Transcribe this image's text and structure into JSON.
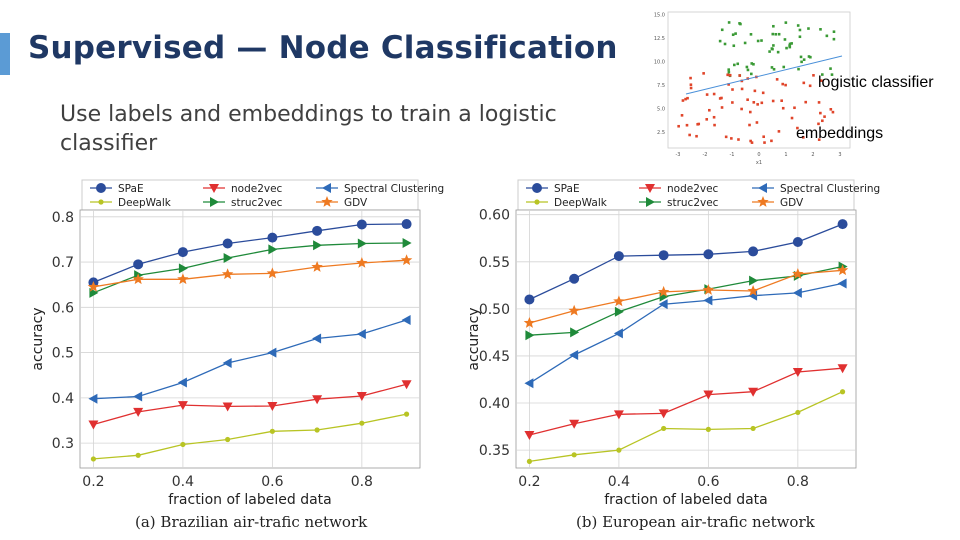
{
  "slide": {
    "title": "Supervised — Node Classification",
    "body": "Use labels and embeddings to train a logistic classifier",
    "accent_color": "#5b9bd5",
    "title_color": "#1f3864"
  },
  "annotations": {
    "logistic": "logistic classifier",
    "embeddings": "embeddings"
  },
  "scatter_inset": {
    "type": "scatter",
    "series_colors": {
      "upper": "#3a9a35",
      "lower": "#e0452a",
      "line": "#4a90d9"
    },
    "x_ticks": [
      "-3",
      "-2",
      "-1",
      "0",
      "1",
      "2",
      "3"
    ],
    "y_ticks": [
      "2.5",
      "5.0",
      "7.5",
      "10.0",
      "12.5",
      "15.0"
    ],
    "xlabel": "x1"
  },
  "chart_data": [
    {
      "type": "line",
      "caption": "(a) Brazilian air-trafic network",
      "xlabel": "fraction of labeled data",
      "ylabel": "accuracy",
      "xlim": [
        0.17,
        0.93
      ],
      "ylim": [
        0.245,
        0.815
      ],
      "x_ticks": [
        "0.2",
        "0.4",
        "0.6",
        "0.8"
      ],
      "y_ticks": [
        "0.3",
        "0.4",
        "0.5",
        "0.6",
        "0.7",
        "0.8"
      ],
      "grid": true,
      "legend": "top",
      "x": [
        0.2,
        0.3,
        0.4,
        0.5,
        0.6,
        0.7,
        0.8,
        0.9
      ],
      "series": [
        {
          "name": "SPaE",
          "color": "#2b4c9b",
          "marker": "circle",
          "values": [
            0.655,
            0.695,
            0.722,
            0.741,
            0.754,
            0.769,
            0.783,
            0.784
          ]
        },
        {
          "name": "node2vec",
          "color": "#e03030",
          "marker": "triangle-down",
          "values": [
            0.341,
            0.369,
            0.384,
            0.381,
            0.382,
            0.397,
            0.404,
            0.43
          ]
        },
        {
          "name": "Spectral Clustering",
          "color": "#2e6ab8",
          "marker": "triangle-left",
          "values": [
            0.398,
            0.403,
            0.434,
            0.477,
            0.5,
            0.531,
            0.541,
            0.572
          ]
        },
        {
          "name": "DeepWalk",
          "color": "#b8c424",
          "marker": "dot",
          "values": [
            0.265,
            0.273,
            0.297,
            0.308,
            0.326,
            0.329,
            0.344,
            0.364
          ]
        },
        {
          "name": "struc2vec",
          "color": "#1f8a3a",
          "marker": "triangle-right",
          "values": [
            0.632,
            0.671,
            0.686,
            0.709,
            0.728,
            0.737,
            0.741,
            0.742
          ]
        },
        {
          "name": "GDV",
          "color": "#ee7a22",
          "marker": "star",
          "values": [
            0.645,
            0.662,
            0.662,
            0.673,
            0.675,
            0.689,
            0.698,
            0.704
          ]
        }
      ]
    },
    {
      "type": "line",
      "caption": "(b) European air-trafic network",
      "xlabel": "fraction of labeled data",
      "ylabel": "accuracy",
      "xlim": [
        0.17,
        0.93
      ],
      "ylim": [
        0.331,
        0.605
      ],
      "x_ticks": [
        "0.2",
        "0.4",
        "0.6",
        "0.8"
      ],
      "y_ticks": [
        "0.35",
        "0.40",
        "0.45",
        "0.50",
        "0.55",
        "0.60"
      ],
      "grid": true,
      "legend": "top",
      "x": [
        0.2,
        0.3,
        0.4,
        0.5,
        0.6,
        0.7,
        0.8,
        0.9
      ],
      "series": [
        {
          "name": "SPaE",
          "color": "#2b4c9b",
          "marker": "circle",
          "values": [
            0.51,
            0.532,
            0.556,
            0.557,
            0.558,
            0.561,
            0.571,
            0.59
          ]
        },
        {
          "name": "node2vec",
          "color": "#e03030",
          "marker": "triangle-down",
          "values": [
            0.366,
            0.378,
            0.388,
            0.389,
            0.409,
            0.412,
            0.433,
            0.437
          ]
        },
        {
          "name": "Spectral Clustering",
          "color": "#2e6ab8",
          "marker": "triangle-left",
          "values": [
            0.421,
            0.451,
            0.474,
            0.505,
            0.509,
            0.514,
            0.517,
            0.527
          ]
        },
        {
          "name": "DeepWalk",
          "color": "#b8c424",
          "marker": "dot",
          "values": [
            0.338,
            0.345,
            0.35,
            0.373,
            0.372,
            0.373,
            0.39,
            0.412
          ]
        },
        {
          "name": "struc2vec",
          "color": "#1f8a3a",
          "marker": "triangle-right",
          "values": [
            0.472,
            0.475,
            0.497,
            0.513,
            0.521,
            0.53,
            0.535,
            0.545
          ]
        },
        {
          "name": "GDV",
          "color": "#ee7a22",
          "marker": "star",
          "values": [
            0.485,
            0.498,
            0.508,
            0.518,
            0.52,
            0.519,
            0.537,
            0.541
          ]
        }
      ]
    }
  ]
}
